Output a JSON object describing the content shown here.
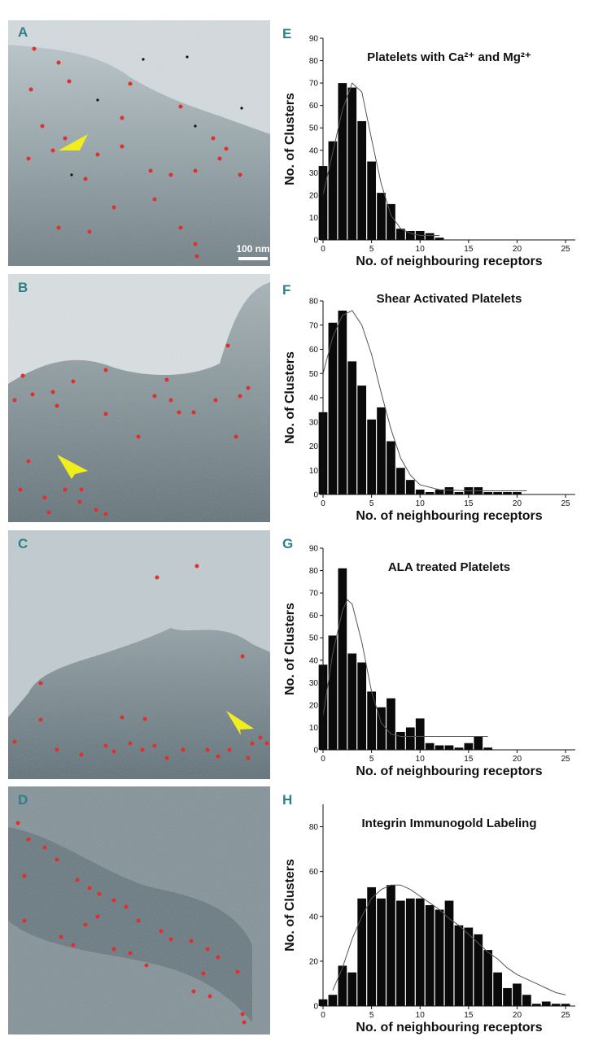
{
  "micrographs": [
    {
      "label": "A",
      "scalebar": "100 nm"
    },
    {
      "label": "B"
    },
    {
      "label": "C"
    },
    {
      "label": "D"
    }
  ],
  "chart_data": [
    {
      "panel": "E",
      "type": "bar",
      "title": "Platelets with Ca²⁺ and Mg²⁺",
      "xlabel": "No. of neighbouring receptors",
      "ylabel": "No. of Clusters",
      "xlim": [
        0,
        26
      ],
      "ylim": [
        0,
        90
      ],
      "xticks": [
        0,
        5,
        10,
        15,
        20,
        25
      ],
      "yticks": [
        0,
        10,
        20,
        30,
        40,
        50,
        60,
        70,
        80,
        90
      ],
      "x": [
        0,
        1,
        2,
        3,
        4,
        5,
        6,
        7,
        8,
        9,
        10,
        11,
        12
      ],
      "values": [
        33,
        44,
        70,
        68,
        53,
        35,
        21,
        16,
        5,
        4,
        4,
        3,
        1
      ],
      "fit_curve": [
        [
          0,
          20
        ],
        [
          1,
          39
        ],
        [
          2,
          58
        ],
        [
          3,
          70
        ],
        [
          4,
          66
        ],
        [
          5,
          45
        ],
        [
          6,
          25
        ],
        [
          7,
          11
        ],
        [
          8,
          5
        ],
        [
          9,
          3
        ],
        [
          10,
          2
        ],
        [
          12,
          2
        ]
      ]
    },
    {
      "panel": "F",
      "type": "bar",
      "title": "Shear Activated Platelets",
      "xlabel": "No. of neighbouring receptors",
      "ylabel": "No. of Clusters",
      "xlim": [
        0,
        26
      ],
      "ylim": [
        0,
        80
      ],
      "xticks": [
        0,
        5,
        10,
        15,
        20,
        25
      ],
      "yticks": [
        0,
        10,
        20,
        30,
        40,
        50,
        60,
        70,
        80
      ],
      "x": [
        0,
        1,
        2,
        3,
        4,
        5,
        6,
        7,
        8,
        9,
        10,
        11,
        12,
        13,
        14,
        15,
        16,
        17,
        18,
        19,
        20
      ],
      "values": [
        34,
        71,
        76,
        55,
        45,
        31,
        36,
        22,
        11,
        6,
        2,
        1,
        2,
        3,
        1,
        3,
        3,
        1,
        1,
        1,
        1
      ],
      "fit_curve": [
        [
          0,
          50
        ],
        [
          1,
          65
        ],
        [
          2,
          74
        ],
        [
          3,
          76
        ],
        [
          4,
          70
        ],
        [
          5,
          58
        ],
        [
          6,
          42
        ],
        [
          7,
          27
        ],
        [
          8,
          15
        ],
        [
          9,
          8
        ],
        [
          10,
          4
        ],
        [
          12,
          2
        ],
        [
          15,
          1.5
        ],
        [
          21,
          1.5
        ]
      ]
    },
    {
      "panel": "G",
      "type": "bar",
      "title": "ALA treated Platelets",
      "xlabel": "No. of neighbouring receptors",
      "ylabel": "No. of Clusters",
      "xlim": [
        0,
        26
      ],
      "ylim": [
        0,
        90
      ],
      "xticks": [
        0,
        5,
        10,
        15,
        20,
        25
      ],
      "yticks": [
        0,
        10,
        20,
        30,
        40,
        50,
        60,
        70,
        80,
        90
      ],
      "x": [
        0,
        1,
        2,
        3,
        4,
        5,
        6,
        7,
        8,
        9,
        10,
        11,
        12,
        13,
        14,
        15,
        16,
        17
      ],
      "values": [
        38,
        51,
        81,
        43,
        39,
        26,
        19,
        23,
        8,
        10,
        14,
        3,
        2,
        2,
        1,
        3,
        6,
        1
      ],
      "fit_curve": [
        [
          0,
          15
        ],
        [
          1,
          43
        ],
        [
          2,
          62
        ],
        [
          2.5,
          67
        ],
        [
          3,
          65
        ],
        [
          4,
          48
        ],
        [
          5,
          26
        ],
        [
          6,
          12
        ],
        [
          7,
          7
        ],
        [
          8,
          6
        ],
        [
          12,
          6
        ],
        [
          17,
          6
        ]
      ]
    },
    {
      "panel": "H",
      "type": "bar",
      "title": "Integrin Immunogold Labeling",
      "xlabel": "No. of neighbouring receptors",
      "ylabel": "No. of Clusters",
      "xlim": [
        0,
        26
      ],
      "ylim": [
        0,
        90
      ],
      "xticks": [
        0,
        5,
        10,
        15,
        20,
        25
      ],
      "yticks": [
        0,
        20,
        40,
        60,
        80
      ],
      "x": [
        0,
        1,
        2,
        3,
        4,
        5,
        6,
        7,
        8,
        9,
        10,
        11,
        12,
        13,
        14,
        15,
        16,
        17,
        18,
        19,
        20,
        21,
        22,
        23,
        24,
        25
      ],
      "values": [
        3,
        5,
        18,
        15,
        48,
        53,
        48,
        54,
        47,
        48,
        48,
        45,
        43,
        47,
        36,
        35,
        32,
        25,
        15,
        8,
        10,
        5,
        1,
        2,
        1,
        1
      ],
      "fit_curve": [
        [
          1,
          7
        ],
        [
          2,
          17
        ],
        [
          3,
          30
        ],
        [
          4,
          40
        ],
        [
          5,
          48
        ],
        [
          6,
          52
        ],
        [
          7,
          54
        ],
        [
          8,
          54
        ],
        [
          9,
          52
        ],
        [
          10,
          49
        ],
        [
          11,
          46
        ],
        [
          12,
          43
        ],
        [
          13,
          39
        ],
        [
          14,
          36
        ],
        [
          15,
          32
        ],
        [
          16,
          28
        ],
        [
          17,
          24
        ],
        [
          18,
          21
        ],
        [
          19,
          17
        ],
        [
          20,
          14
        ],
        [
          21,
          12
        ],
        [
          22,
          10
        ],
        [
          23,
          8
        ],
        [
          24,
          6
        ],
        [
          25,
          5
        ]
      ]
    }
  ]
}
